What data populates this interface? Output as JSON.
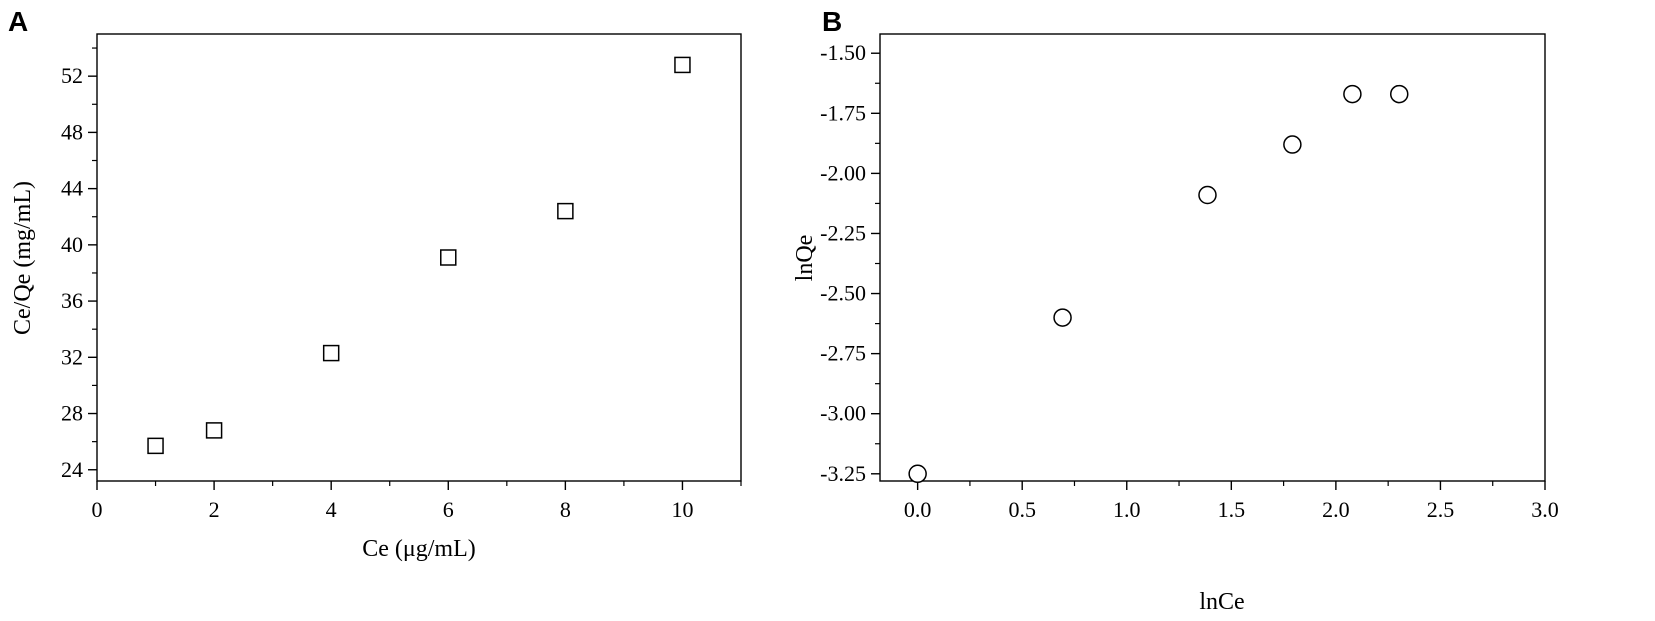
{
  "panels": {
    "a": {
      "label": "A"
    },
    "b": {
      "label": "B"
    }
  },
  "chart_data": [
    {
      "panel": "A",
      "type": "scatter",
      "xlabel": "Ce (μg/mL)",
      "ylabel": "Ce/Qe (mg/mL)",
      "xlim": [
        0,
        11
      ],
      "ylim": [
        23.2,
        55
      ],
      "xticks": [
        0,
        2,
        4,
        6,
        8,
        10
      ],
      "yticks": [
        24,
        28,
        32,
        36,
        40,
        44,
        48,
        52
      ],
      "xtick_labels": [
        "0",
        "2",
        "4",
        "6",
        "8",
        "10"
      ],
      "ytick_labels": [
        "24",
        "28",
        "32",
        "36",
        "40",
        "44",
        "48",
        "52"
      ],
      "marker": "square",
      "grid": false,
      "series": [
        {
          "x": [
            1,
            2,
            4,
            6,
            8,
            10
          ],
          "y": [
            25.7,
            26.8,
            32.3,
            39.1,
            42.4,
            52.8
          ]
        }
      ]
    },
    {
      "panel": "B",
      "type": "scatter",
      "xlabel": "lnCe",
      "ylabel": "lnQe",
      "xlim": [
        -0.18,
        3.0
      ],
      "ylim": [
        -3.28,
        -1.42
      ],
      "xticks": [
        0,
        0.5,
        1,
        1.5,
        2,
        2.5,
        3
      ],
      "yticks": [
        -1.5,
        -1.75,
        -2,
        -2.25,
        -2.5,
        -2.75,
        -3,
        -3.25
      ],
      "xtick_labels": [
        "0.0",
        "0.5",
        "1.0",
        "1.5",
        "2.0",
        "2.5",
        "3.0"
      ],
      "ytick_labels": [
        "-1.50",
        "-1.75",
        "-2.00",
        "-2.25",
        "-2.50",
        "-2.75",
        "-3.00",
        "-3.25"
      ],
      "marker": "circle",
      "grid": false,
      "series": [
        {
          "x": [
            0,
            0.693,
            1.386,
            1.792,
            2.079,
            2.303
          ],
          "y": [
            -3.25,
            -2.6,
            -2.09,
            -1.88,
            -1.67,
            -1.67
          ]
        }
      ]
    }
  ]
}
